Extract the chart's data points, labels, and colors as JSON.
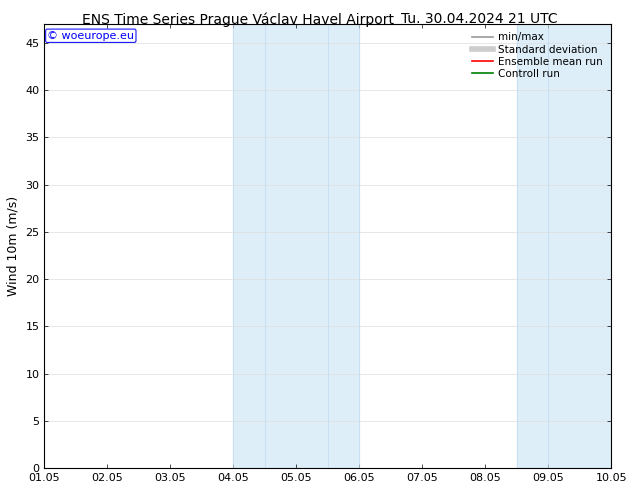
{
  "title_left": "ENS Time Series Prague Václav Havel Airport",
  "title_right": "Tu. 30.04.2024 21 UTC",
  "ylabel": "Wind 10m (m/s)",
  "watermark": "© woeurope.eu",
  "xlim_start": 0,
  "xlim_end": 9,
  "ylim": [
    0,
    47
  ],
  "yticks": [
    0,
    5,
    10,
    15,
    20,
    25,
    30,
    35,
    40,
    45
  ],
  "xtick_labels": [
    "01.05",
    "02.05",
    "03.05",
    "04.05",
    "05.05",
    "06.05",
    "07.05",
    "08.05",
    "09.05",
    "10.05"
  ],
  "shaded_bands": [
    {
      "x_start": 3.0,
      "x_end": 3.5,
      "color": "#ddeef8"
    },
    {
      "x_start": 3.5,
      "x_end": 5.0,
      "color": "#ddeef8"
    },
    {
      "x_start": 7.5,
      "x_end": 8.0,
      "color": "#ddeef8"
    },
    {
      "x_start": 8.0,
      "x_end": 9.0,
      "color": "#ddeef8"
    }
  ],
  "legend_entries": [
    {
      "label": "min/max",
      "color": "#999999",
      "lw": 1.2,
      "linestyle": "-"
    },
    {
      "label": "Standard deviation",
      "color": "#cccccc",
      "lw": 4,
      "linestyle": "-"
    },
    {
      "label": "Ensemble mean run",
      "color": "red",
      "lw": 1.2,
      "linestyle": "-"
    },
    {
      "label": "Controll run",
      "color": "green",
      "lw": 1.2,
      "linestyle": "-"
    }
  ],
  "background_color": "#ffffff",
  "title_fontsize": 10,
  "ylabel_fontsize": 9,
  "tick_fontsize": 8,
  "legend_fontsize": 7.5,
  "watermark_fontsize": 8,
  "grid_color": "#dddddd",
  "grid_lw": 0.5
}
